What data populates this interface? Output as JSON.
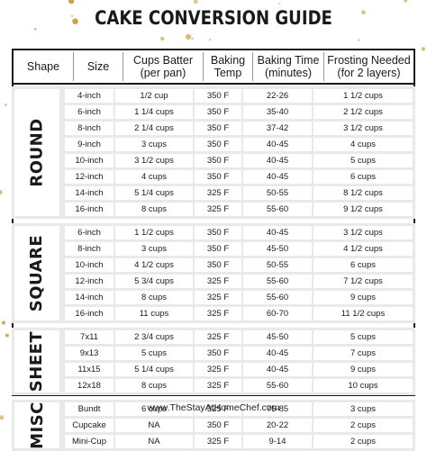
{
  "title": "CAKE CONVERSION GUIDE",
  "footer": "www.TheStayAtHomeChef.com",
  "colors": {
    "dots": "#c9a24a",
    "band": "#e9e9e9",
    "border": "#1a1a1a"
  },
  "headers": {
    "shape": "Shape",
    "size": "Size",
    "batter_1": "Cups Batter",
    "batter_2": "(per pan)",
    "temp_1": "Baking",
    "temp_2": "Temp",
    "time_1": "Baking Time",
    "time_2": "(minutes)",
    "frost_1": "Frosting Needed",
    "frost_2": "(for 2 layers)"
  },
  "groups": [
    {
      "name": "ROUND",
      "rows": [
        [
          "4-inch",
          "1/2 cup",
          "350 F",
          "22-26",
          "1 1/2 cups"
        ],
        [
          "6-inch",
          "1 1/4 cups",
          "350 F",
          "35-40",
          "2 1/2 cups"
        ],
        [
          "8-inch",
          "2 1/4 cups",
          "350 F",
          "37-42",
          "3 1/2 cups"
        ],
        [
          "9-inch",
          "3 cups",
          "350 F",
          "40-45",
          "4 cups"
        ],
        [
          "10-inch",
          "3 1/2 cups",
          "350 F",
          "40-45",
          "5 cups"
        ],
        [
          "12-inch",
          "4 cups",
          "350 F",
          "40-45",
          "6 cups"
        ],
        [
          "14-inch",
          "5 1/4 cups",
          "325 F",
          "50-55",
          "8 1/2 cups"
        ],
        [
          "16-inch",
          "8 cups",
          "325 F",
          "55-60",
          "9 1/2 cups"
        ]
      ]
    },
    {
      "name": "SQUARE",
      "rows": [
        [
          "6-inch",
          "1 1/2 cups",
          "350 F",
          "40-45",
          "3 1/2 cups"
        ],
        [
          "8-inch",
          "3 cups",
          "350 F",
          "45-50",
          "4 1/2 cups"
        ],
        [
          "10-inch",
          "4 1/2 cups",
          "350 F",
          "50-55",
          "6 cups"
        ],
        [
          "12-inch",
          "5 3/4 cups",
          "325 F",
          "55-60",
          "7 1/2 cups"
        ],
        [
          "14-inch",
          "8 cups",
          "325 F",
          "55-60",
          "9 cups"
        ],
        [
          "16-inch",
          "11 cups",
          "325 F",
          "60-70",
          "11 1/2 cups"
        ]
      ]
    },
    {
      "name": "SHEET",
      "rows": [
        [
          "7x11",
          "2 3/4 cups",
          "325 F",
          "45-50",
          "5 cups"
        ],
        [
          "9x13",
          "5 cups",
          "350 F",
          "40-45",
          "7 cups"
        ],
        [
          "11x15",
          "5 1/4 cups",
          "325 F",
          "40-45",
          "9 cups"
        ],
        [
          "12x18",
          "8 cups",
          "325 F",
          "55-60",
          "10 cups"
        ]
      ]
    },
    {
      "name": "MISC",
      "rows": [
        [
          "Bundt",
          "6 cups",
          "325 F",
          "75-85",
          "3 cups"
        ],
        [
          "Cupcake",
          "NA",
          "350 F",
          "20-22",
          "2 cups"
        ],
        [
          "Mini-Cup",
          "NA",
          "325 F",
          "9-14",
          "2 cups"
        ]
      ]
    }
  ]
}
